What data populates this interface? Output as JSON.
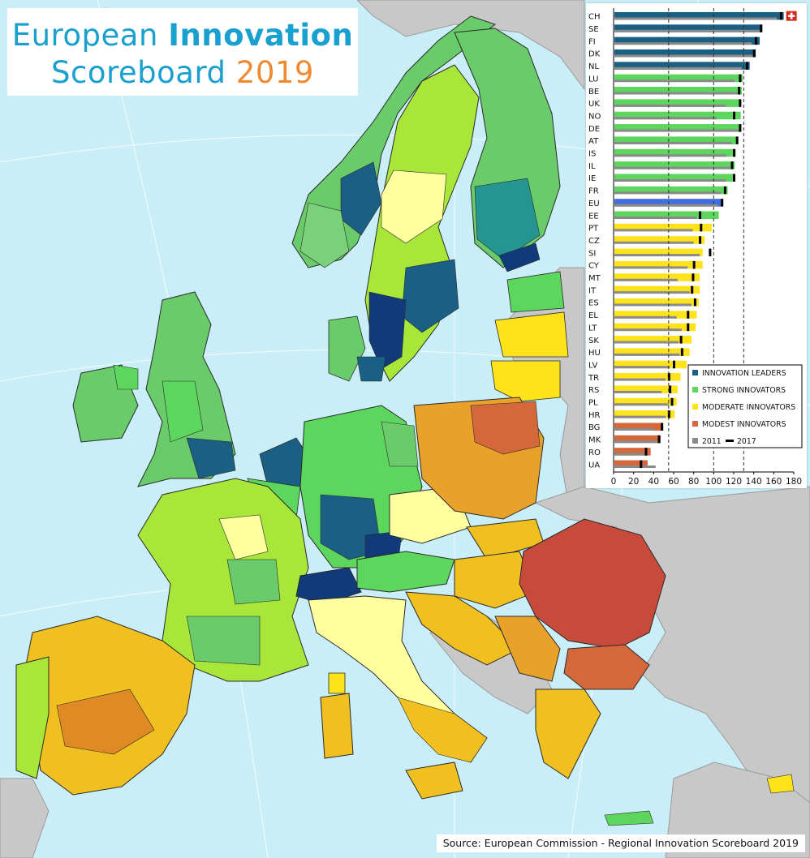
{
  "title": {
    "part1": "European",
    "part2": "Innovation",
    "part3": "Scoreboard",
    "part4": "2019"
  },
  "source": "Source: European Commission - Regional Innovation Scoreboard 2019",
  "colors": {
    "sea": "#c9eef7",
    "land_other": "#c8c8c8",
    "innovation_leader": "#1a5f84",
    "strong_innovator": "#5cd65c",
    "moderate_innovator": "#ffe31a",
    "modest_innovator": "#d4683a",
    "eu": "#3f6fe0",
    "value_2011": "#8a8a8a",
    "value_2017": "#000000"
  },
  "chart_data": {
    "type": "bar",
    "orientation": "horizontal",
    "xlim": [
      0,
      180
    ],
    "xticks": [
      0,
      20,
      40,
      60,
      80,
      100,
      120,
      140,
      160,
      180
    ],
    "reference_lines": [
      55,
      100,
      130
    ],
    "categories": [
      "CH",
      "SE",
      "FI",
      "DK",
      "NL",
      "LU",
      "BE",
      "UK",
      "NO",
      "DE",
      "AT",
      "IS",
      "IL",
      "IE",
      "FR",
      "EU",
      "EE",
      "PT",
      "CZ",
      "SI",
      "CY",
      "MT",
      "IT",
      "ES",
      "EL",
      "LT",
      "SK",
      "HU",
      "LV",
      "TR",
      "RS",
      "PL",
      "HR",
      "BG",
      "MK",
      "RO",
      "UA"
    ],
    "groups": [
      "leader",
      "leader",
      "leader",
      "leader",
      "leader",
      "strong",
      "strong",
      "strong",
      "strong",
      "strong",
      "strong",
      "strong",
      "strong",
      "strong",
      "strong",
      "eu",
      "strong",
      "moderate",
      "moderate",
      "moderate",
      "moderate",
      "moderate",
      "moderate",
      "moderate",
      "moderate",
      "moderate",
      "moderate",
      "moderate",
      "moderate",
      "moderate",
      "moderate",
      "moderate",
      "moderate",
      "modest",
      "modest",
      "modest",
      "modest"
    ],
    "values_2019": [
      170,
      148,
      146,
      142,
      136,
      129,
      128,
      127,
      127,
      127,
      124,
      122,
      121,
      121,
      114,
      109,
      105,
      98,
      91,
      89,
      89,
      86,
      86,
      85,
      83,
      82,
      78,
      76,
      73,
      67,
      64,
      63,
      61,
      49,
      47,
      37,
      34
    ],
    "values_2011": [
      163,
      146,
      138,
      141,
      128,
      121,
      124,
      112,
      103,
      125,
      118,
      113,
      117,
      112,
      107,
      104,
      83,
      79,
      80,
      86,
      74,
      64,
      76,
      78,
      63,
      68,
      65,
      66,
      56,
      52,
      48,
      55,
      52,
      40,
      46,
      34,
      42
    ],
    "values_2017": [
      167,
      147,
      142,
      140,
      133,
      126,
      125,
      126,
      120,
      126,
      123,
      120,
      118,
      120,
      111,
      108,
      86,
      87,
      86,
      96,
      80,
      79,
      78,
      81,
      74,
      74,
      67,
      68,
      60,
      55,
      56,
      58,
      55,
      48,
      45,
      32,
      27
    ],
    "legend": {
      "leaders": "INNOVATION LEADERS",
      "strong": "STRONG INNOVATORS",
      "moderate": "MODERATE INNOVATORS",
      "modest": "MODEST INNOVATORS",
      "y2011": "2011",
      "y2017": "2017"
    },
    "flag_category": "CH"
  }
}
